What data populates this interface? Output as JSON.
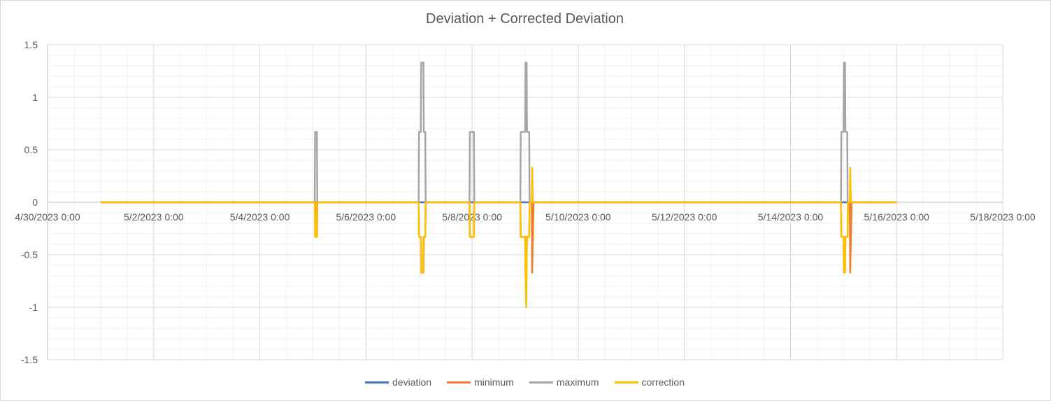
{
  "chart_data": {
    "type": "line",
    "title": "Deviation + Corrected Deviation",
    "xlabel": "",
    "ylabel": "",
    "x_axis": {
      "type": "date",
      "range": [
        "4/30/2023 0:00",
        "5/18/2023 0:00"
      ],
      "tick_labels": [
        "4/30/2023 0:00",
        "5/2/2023 0:00",
        "5/4/2023 0:00",
        "5/6/2023 0:00",
        "5/8/2023 0:00",
        "5/10/2023 0:00",
        "5/12/2023 0:00",
        "5/14/2023 0:00",
        "5/16/2023 0:00",
        "5/18/2023 0:00"
      ]
    },
    "y_axis": {
      "range": [
        -1.5,
        1.5
      ],
      "tick_labels": [
        "1.5",
        "1",
        "0.5",
        "0",
        "-0.5",
        "-1",
        "-1.5"
      ],
      "tick_values": [
        1.5,
        1,
        0.5,
        0,
        -0.5,
        -1,
        -1.5
      ]
    },
    "grid": true,
    "legend_position": "bottom",
    "series": [
      {
        "name": "deviation",
        "color": "#4472C4",
        "points": [
          [
            "5/1/2023 0:00",
            0
          ],
          [
            "5/16/2023 0:00",
            0
          ]
        ]
      },
      {
        "name": "minimum",
        "color": "#ED7D31",
        "points": [
          [
            "5/1/2023 0:00",
            0
          ],
          [
            "5/5/2023 1:00",
            0
          ],
          [
            "5/5/2023 1:10",
            -0.33
          ],
          [
            "5/5/2023 1:50",
            -0.33
          ],
          [
            "5/5/2023 2:00",
            0
          ],
          [
            "5/6/2023 23:50",
            0
          ],
          [
            "5/7/2023 0:00",
            -0.33
          ],
          [
            "5/7/2023 0:50",
            -0.33
          ],
          [
            "5/7/2023 1:00",
            -0.67
          ],
          [
            "5/7/2023 2:00",
            -0.67
          ],
          [
            "5/7/2023 2:10",
            -0.33
          ],
          [
            "5/7/2023 2:50",
            -0.33
          ],
          [
            "5/7/2023 3:00",
            0
          ],
          [
            "5/7/2023 22:50",
            0
          ],
          [
            "5/7/2023 23:00",
            -0.33
          ],
          [
            "5/8/2023 0:50",
            -0.33
          ],
          [
            "5/8/2023 1:00",
            0
          ],
          [
            "5/8/2023 21:50",
            0
          ],
          [
            "5/8/2023 22:00",
            -0.33
          ],
          [
            "5/9/2023 0:00",
            -0.33
          ],
          [
            "5/9/2023 0:10",
            -0.67
          ],
          [
            "5/9/2023 0:30",
            -0.67
          ],
          [
            "5/9/2023 0:40",
            -0.33
          ],
          [
            "5/9/2023 1:50",
            -0.33
          ],
          [
            "5/9/2023 2:00",
            0
          ],
          [
            "5/9/2023 3:00",
            0
          ],
          [
            "5/9/2023 3:10",
            -0.67
          ],
          [
            "5/9/2023 3:50",
            0
          ],
          [
            "5/14/2023 22:50",
            0
          ],
          [
            "5/14/2023 23:00",
            -0.33
          ],
          [
            "5/15/2023 0:00",
            -0.33
          ],
          [
            "5/15/2023 0:10",
            -0.67
          ],
          [
            "5/15/2023 0:40",
            -0.67
          ],
          [
            "5/15/2023 0:50",
            -0.33
          ],
          [
            "5/15/2023 1:50",
            -0.33
          ],
          [
            "5/15/2023 2:00",
            0
          ],
          [
            "5/15/2023 2:50",
            0
          ],
          [
            "5/15/2023 3:00",
            -0.67
          ],
          [
            "5/15/2023 3:40",
            0
          ],
          [
            "5/16/2023 0:00",
            0
          ]
        ]
      },
      {
        "name": "maximum",
        "color": "#A5A5A5",
        "points": [
          [
            "5/1/2023 0:00",
            0
          ],
          [
            "5/5/2023 0:50",
            0
          ],
          [
            "5/5/2023 1:00",
            0.67
          ],
          [
            "5/5/2023 1:50",
            0.67
          ],
          [
            "5/5/2023 2:00",
            0
          ],
          [
            "5/6/2023 23:50",
            0
          ],
          [
            "5/7/2023 0:00",
            0.67
          ],
          [
            "5/7/2023 0:50",
            0.67
          ],
          [
            "5/7/2023 1:00",
            1.33
          ],
          [
            "5/7/2023 2:00",
            1.33
          ],
          [
            "5/7/2023 2:10",
            0.67
          ],
          [
            "5/7/2023 2:50",
            0.67
          ],
          [
            "5/7/2023 3:00",
            0
          ],
          [
            "5/7/2023 22:50",
            0
          ],
          [
            "5/7/2023 23:00",
            0.67
          ],
          [
            "5/8/2023 0:50",
            0.67
          ],
          [
            "5/8/2023 1:00",
            0
          ],
          [
            "5/8/2023 21:50",
            0
          ],
          [
            "5/8/2023 22:00",
            0.67
          ],
          [
            "5/9/2023 0:00",
            0.67
          ],
          [
            "5/9/2023 0:10",
            1.33
          ],
          [
            "5/9/2023 0:40",
            1.33
          ],
          [
            "5/9/2023 0:50",
            0.67
          ],
          [
            "5/9/2023 1:50",
            0.67
          ],
          [
            "5/9/2023 2:00",
            0
          ],
          [
            "5/14/2023 22:50",
            0
          ],
          [
            "5/14/2023 23:00",
            0.67
          ],
          [
            "5/15/2023 0:00",
            0.67
          ],
          [
            "5/15/2023 0:10",
            1.33
          ],
          [
            "5/15/2023 0:40",
            1.33
          ],
          [
            "5/15/2023 0:50",
            0.67
          ],
          [
            "5/15/2023 1:40",
            0.67
          ],
          [
            "5/15/2023 1:50",
            0
          ],
          [
            "5/16/2023 0:00",
            0
          ]
        ]
      },
      {
        "name": "correction",
        "color": "#FFC000",
        "points": [
          [
            "5/1/2023 0:00",
            0
          ],
          [
            "5/5/2023 0:50",
            0
          ],
          [
            "5/5/2023 1:00",
            -0.33
          ],
          [
            "5/5/2023 1:40",
            -0.33
          ],
          [
            "5/5/2023 1:50",
            0
          ],
          [
            "5/6/2023 23:50",
            0
          ],
          [
            "5/7/2023 0:00",
            -0.33
          ],
          [
            "5/7/2023 0:50",
            -0.33
          ],
          [
            "5/7/2023 1:00",
            -0.67
          ],
          [
            "5/7/2023 1:50",
            -0.67
          ],
          [
            "5/7/2023 2:00",
            -0.33
          ],
          [
            "5/7/2023 2:50",
            -0.33
          ],
          [
            "5/7/2023 3:00",
            0
          ],
          [
            "5/7/2023 22:50",
            0
          ],
          [
            "5/7/2023 23:00",
            -0.33
          ],
          [
            "5/8/2023 0:50",
            -0.33
          ],
          [
            "5/8/2023 1:00",
            0
          ],
          [
            "5/8/2023 21:50",
            0
          ],
          [
            "5/8/2023 22:00",
            -0.33
          ],
          [
            "5/9/2023 0:00",
            -0.33
          ],
          [
            "5/9/2023 0:10",
            -0.67
          ],
          [
            "5/9/2023 0:30",
            -1.0
          ],
          [
            "5/9/2023 0:50",
            -0.33
          ],
          [
            "5/9/2023 1:50",
            -0.33
          ],
          [
            "5/9/2023 2:00",
            0
          ],
          [
            "5/9/2023 3:00",
            0
          ],
          [
            "5/9/2023 3:10",
            0.33
          ],
          [
            "5/9/2023 3:30",
            0
          ],
          [
            "5/14/2023 22:50",
            0
          ],
          [
            "5/14/2023 23:00",
            -0.33
          ],
          [
            "5/15/2023 0:00",
            -0.33
          ],
          [
            "5/15/2023 0:10",
            -0.67
          ],
          [
            "5/15/2023 0:40",
            -0.67
          ],
          [
            "5/15/2023 0:50",
            -0.33
          ],
          [
            "5/15/2023 1:50",
            -0.33
          ],
          [
            "5/15/2023 2:00",
            0
          ],
          [
            "5/15/2023 2:50",
            0
          ],
          [
            "5/15/2023 3:00",
            0.33
          ],
          [
            "5/15/2023 3:20",
            0
          ],
          [
            "5/16/2023 0:00",
            0
          ]
        ]
      }
    ]
  }
}
